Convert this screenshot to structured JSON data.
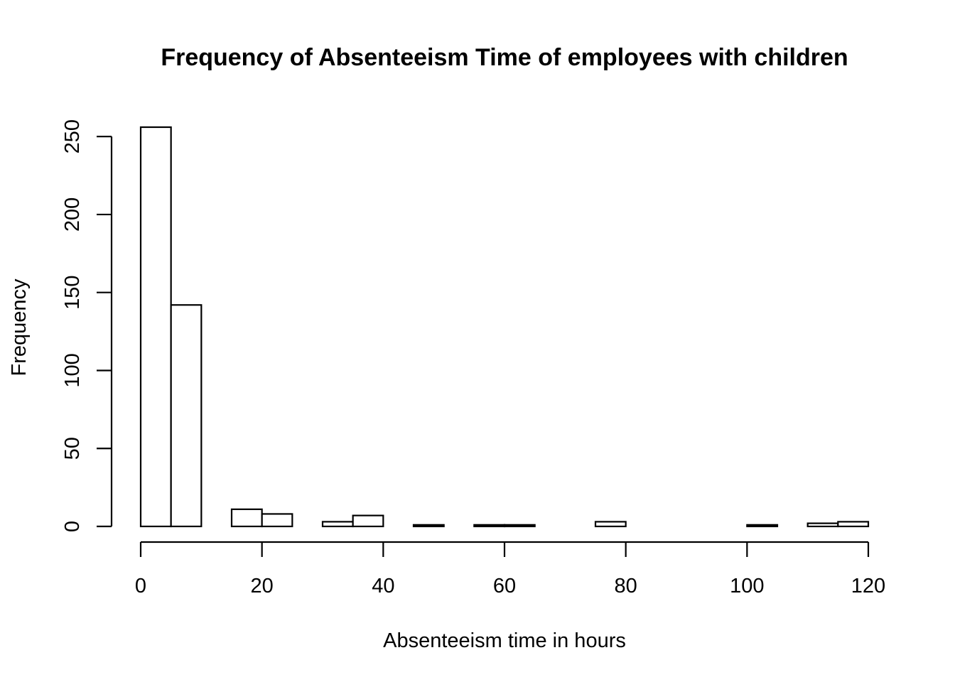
{
  "chart_data": {
    "type": "bar",
    "title": "Frequency of Absenteeism Time of employees with children",
    "xlabel": "Absenteeism time in hours",
    "ylabel": "Frequency",
    "bin_edges": [
      0,
      5,
      10,
      15,
      20,
      25,
      30,
      35,
      40,
      45,
      50,
      55,
      60,
      65,
      70,
      75,
      80,
      85,
      90,
      95,
      100,
      105,
      110,
      115,
      120
    ],
    "values": [
      256,
      142,
      0,
      11,
      8,
      0,
      3,
      7,
      0,
      1,
      0,
      1,
      1,
      0,
      0,
      3,
      0,
      0,
      0,
      0,
      1,
      0,
      2,
      3
    ],
    "xlim": [
      0,
      120
    ],
    "ylim": [
      0,
      256
    ],
    "x_ticks": [
      0,
      20,
      40,
      60,
      80,
      100,
      120
    ],
    "y_ticks": [
      0,
      50,
      100,
      150,
      200,
      250
    ],
    "bar_fill": "#ffffff",
    "bar_stroke": "#000000",
    "grid": false,
    "legend": "none"
  }
}
